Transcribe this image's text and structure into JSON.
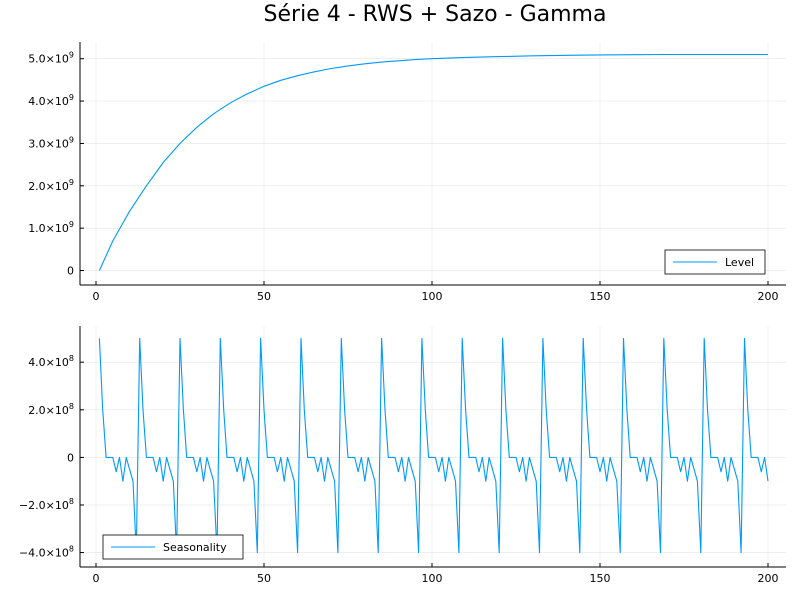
{
  "title": "Série 4 - RWS + Sazo - Gamma",
  "colors": {
    "series": "#009af9",
    "grid": "#e6e6e6",
    "axis": "#000000"
  },
  "chart_data": [
    {
      "type": "line",
      "legend": "Level",
      "legend_position": "bottom-right",
      "grid": true,
      "xlim": [
        1,
        200
      ],
      "ylim": [
        0,
        5100000000
      ],
      "x_ticks": [
        0,
        50,
        100,
        150,
        200
      ],
      "x_tick_labels": [
        "0",
        "50",
        "100",
        "150",
        "200"
      ],
      "y_ticks": [
        0,
        1000000000,
        2000000000,
        3000000000,
        4000000000,
        5000000000
      ],
      "y_tick_labels": [
        {
          "base": "0",
          "exp": ""
        },
        {
          "base": "1.0×10",
          "exp": "9"
        },
        {
          "base": "2.0×10",
          "exp": "9"
        },
        {
          "base": "3.0×10",
          "exp": "9"
        },
        {
          "base": "4.0×10",
          "exp": "9"
        },
        {
          "base": "5.0×10",
          "exp": "9"
        }
      ],
      "series": [
        {
          "name": "Level",
          "x": [
            1,
            5,
            10,
            15,
            20,
            25,
            30,
            35,
            40,
            45,
            50,
            55,
            60,
            65,
            70,
            75,
            80,
            85,
            90,
            95,
            100,
            110,
            120,
            130,
            140,
            150,
            160,
            170,
            180,
            190,
            200
          ],
          "values": [
            0,
            700000000,
            1400000000,
            2000000000,
            2550000000,
            3000000000,
            3380000000,
            3700000000,
            3960000000,
            4170000000,
            4350000000,
            4490000000,
            4600000000,
            4690000000,
            4770000000,
            4830000000,
            4880000000,
            4920000000,
            4950000000,
            4980000000,
            5000000000,
            5030000000,
            5050000000,
            5070000000,
            5080000000,
            5090000000,
            5095000000,
            5100000000,
            5100000000,
            5100000000,
            5100000000
          ]
        }
      ]
    },
    {
      "type": "line",
      "legend": "Seasonality",
      "legend_position": "bottom-left",
      "grid": true,
      "xlim": [
        1,
        200
      ],
      "ylim": [
        -400000000,
        500000000
      ],
      "period": 12,
      "cycle_start_x": 1,
      "cycle_values": [
        500000000,
        200000000,
        0,
        0,
        0,
        -60000000,
        0,
        -100000000,
        0,
        -50000000,
        -100000000,
        -400000000
      ],
      "x_ticks": [
        0,
        50,
        100,
        150,
        200
      ],
      "x_tick_labels": [
        "0",
        "50",
        "100",
        "150",
        "200"
      ],
      "y_ticks": [
        -400000000,
        -200000000,
        0,
        200000000,
        400000000
      ],
      "y_tick_labels": [
        {
          "base": "−4.0×10",
          "exp": "8"
        },
        {
          "base": "−2.0×10",
          "exp": "8"
        },
        {
          "base": "0",
          "exp": ""
        },
        {
          "base": "2.0×10",
          "exp": "8"
        },
        {
          "base": "4.0×10",
          "exp": "8"
        }
      ],
      "series": [
        {
          "name": "Seasonality"
        }
      ]
    }
  ]
}
